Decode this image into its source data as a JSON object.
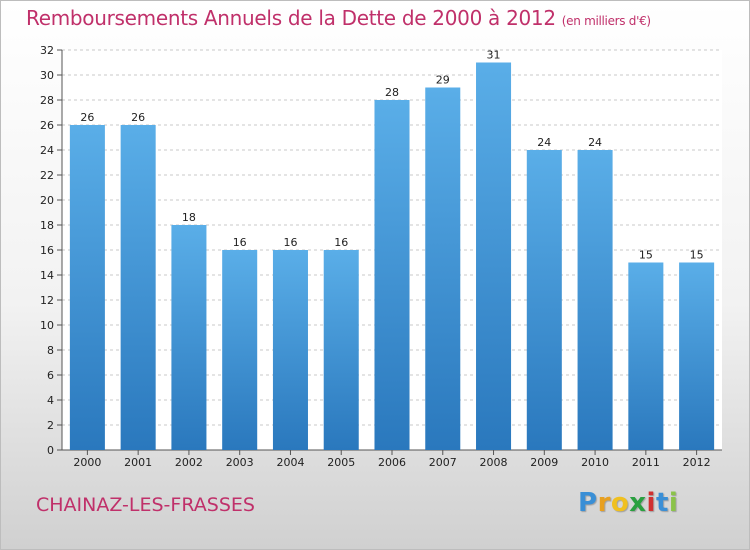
{
  "chart_data": {
    "type": "bar",
    "title": "Remboursements Annuels de la Dette de 2000 à 2012",
    "subtitle": "(en milliers d'€)",
    "categories": [
      "2000",
      "2001",
      "2002",
      "2003",
      "2004",
      "2005",
      "2006",
      "2007",
      "2008",
      "2009",
      "2010",
      "2011",
      "2012"
    ],
    "values": [
      26,
      26,
      18,
      16,
      16,
      16,
      28,
      29,
      31,
      24,
      24,
      15,
      15
    ],
    "ylim": [
      0,
      32
    ],
    "yticks": [
      0,
      2,
      4,
      6,
      8,
      10,
      12,
      14,
      16,
      18,
      20,
      22,
      24,
      26,
      28,
      30,
      32
    ],
    "grid": true,
    "bar_color_top": "#5aaee8",
    "bar_color_bottom": "#2a78bd"
  },
  "location": "CHAINAZ-LES-FRASSES",
  "brand": {
    "letters": [
      "P",
      "r",
      "o",
      "x",
      "i",
      "t",
      "i"
    ],
    "colors": [
      "#3a8fd6",
      "#e8a020",
      "#f0c020",
      "#2aa040",
      "#d03030",
      "#3a8fd6",
      "#8bc34a"
    ]
  }
}
